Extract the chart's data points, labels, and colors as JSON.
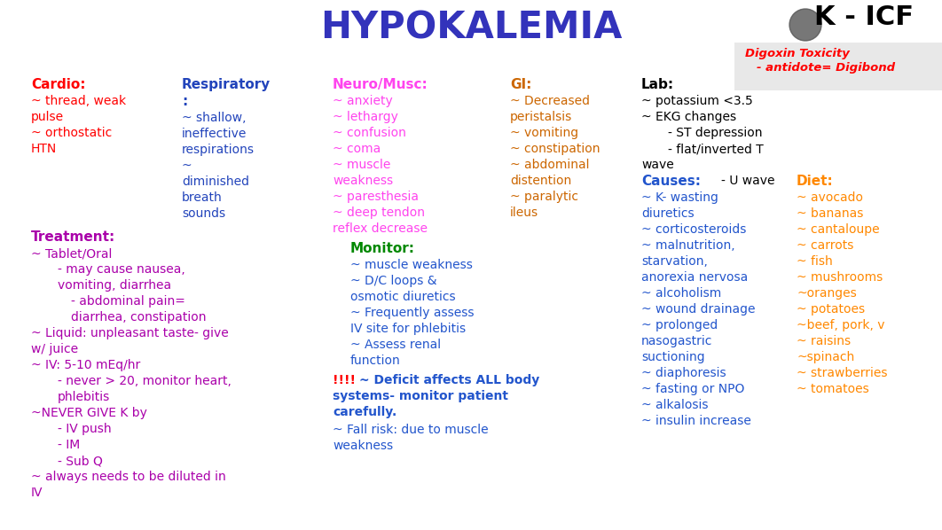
{
  "title": "HYPOKALEMIA",
  "title_color": "#3333bb",
  "bg_color": "#ffffff",
  "k_icf_text": "K - ICF",
  "k_icf_color": "#000000",
  "digoxin_text": "Digoxin Toxicity",
  "digoxin_color": "#ff0000",
  "antidote_text": "- antidote= Digibond",
  "antidote_color": "#ff0000"
}
